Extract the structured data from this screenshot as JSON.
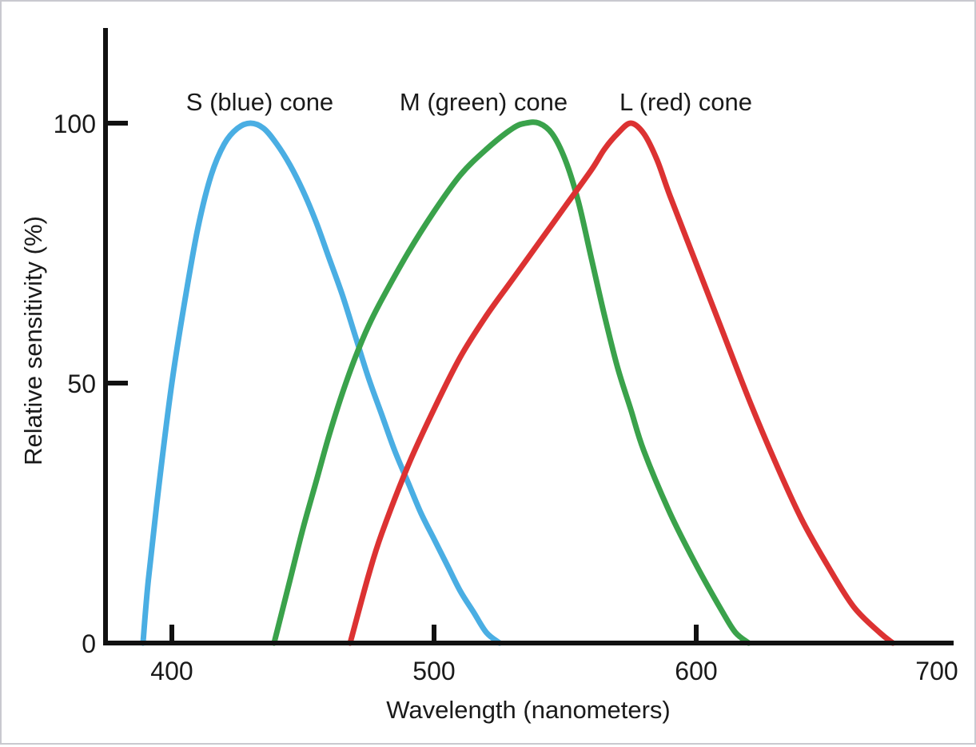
{
  "chart_data": {
    "type": "line",
    "title": "",
    "xlabel": "Wavelength (nanometers)",
    "ylabel": "Relative sensitivity (%)",
    "xlim": [
      375,
      700
    ],
    "ylim": [
      0,
      100
    ],
    "xticks": [
      400,
      500,
      600,
      700
    ],
    "yticks": [
      0,
      50,
      100
    ],
    "x_tick_labels": [
      "400",
      "500",
      "600",
      "700"
    ],
    "y_tick_labels": [
      "0",
      "50",
      "100"
    ],
    "grid": false,
    "legend": "none",
    "series": [
      {
        "name": "S (blue) cone",
        "color": "#4aaee3",
        "x": [
          389,
          391,
          395,
          400,
          405,
          410,
          415,
          420,
          425,
          430,
          435,
          440,
          445,
          450,
          455,
          460,
          465,
          470,
          475,
          480,
          485,
          490,
          495,
          500,
          505,
          510,
          515,
          520,
          525
        ],
        "y": [
          0,
          12,
          30,
          50,
          66,
          80,
          90,
          96,
          99,
          100,
          99,
          96,
          92,
          87,
          81,
          74,
          67,
          59,
          51,
          44,
          37,
          31,
          25,
          20,
          15,
          10,
          6,
          2,
          0
        ]
      },
      {
        "name": "M (green) cone",
        "color": "#3aa24b",
        "x": [
          439,
          445,
          450,
          455,
          460,
          465,
          470,
          475,
          480,
          490,
          500,
          510,
          520,
          530,
          535,
          540,
          545,
          550,
          555,
          560,
          565,
          570,
          575,
          580,
          590,
          600,
          610,
          615,
          620
        ],
        "y": [
          0,
          12,
          22,
          31,
          40,
          48,
          55,
          61,
          66,
          75,
          83,
          90,
          95,
          99,
          100,
          100,
          98,
          93,
          85,
          74,
          63,
          53,
          45,
          37,
          25,
          15,
          6,
          2,
          0
        ]
      },
      {
        "name": "L (red) cone",
        "color": "#dc3232",
        "x": [
          468,
          475,
          480,
          490,
          500,
          510,
          520,
          530,
          540,
          550,
          560,
          565,
          570,
          575,
          580,
          585,
          590,
          600,
          610,
          620,
          630,
          640,
          650,
          660,
          670,
          675
        ],
        "y": [
          0,
          13,
          21,
          34,
          45,
          55,
          63,
          70,
          77,
          84,
          91,
          95,
          98,
          100,
          98,
          93,
          86,
          73,
          60,
          47,
          35,
          24,
          15,
          7,
          2,
          0
        ]
      }
    ]
  }
}
